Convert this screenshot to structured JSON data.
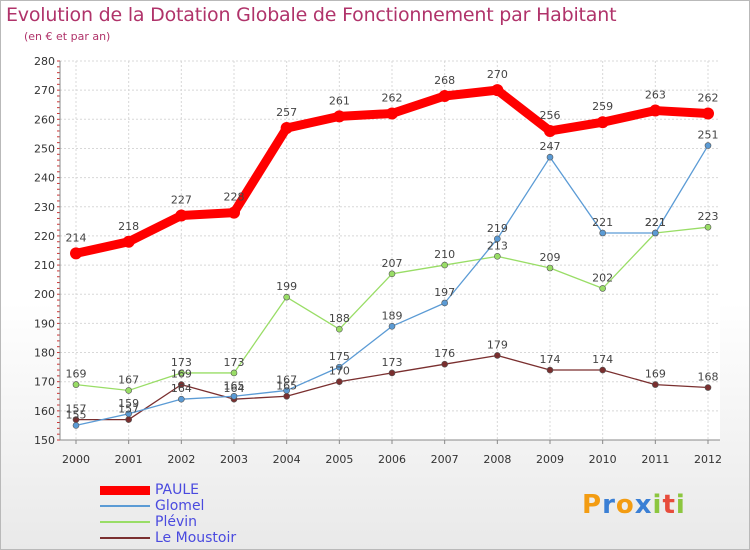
{
  "title": "Evolution de la Dotation Globale de Fonctionnement par Habitant",
  "subtitle": "(en € et par an)",
  "logo": {
    "letters": [
      "P",
      "r",
      "o",
      "x",
      "i",
      "t",
      "i"
    ],
    "colors": [
      "#f39c12",
      "#3a7fd5",
      "#f39c12",
      "#3a7fd5",
      "#8cc63f",
      "#e74c3c",
      "#8cc63f"
    ]
  },
  "chart_data": {
    "type": "line",
    "title": "Evolution de la Dotation Globale de Fonctionnement par Habitant",
    "subtitle": "(en € et par an)",
    "xlabel": "",
    "ylabel": "",
    "x": [
      "2000",
      "2001",
      "2002",
      "2003",
      "2004",
      "2005",
      "2006",
      "2007",
      "2008",
      "2009",
      "2010",
      "2011",
      "2012"
    ],
    "ylim": [
      150,
      280
    ],
    "yticks": [
      "150",
      "160",
      "170",
      "180",
      "190",
      "200",
      "210",
      "220",
      "230",
      "240",
      "250",
      "260",
      "270",
      "280"
    ],
    "grid": true,
    "legend_position": "bottom-left",
    "series": [
      {
        "name": "PAULE",
        "color": "#ff0000",
        "values": [
          214,
          218,
          227,
          228,
          257,
          261,
          262,
          268,
          270,
          256,
          259,
          263,
          262
        ]
      },
      {
        "name": "Glomel",
        "color": "#5b9bd5",
        "values": [
          155,
          159,
          164,
          165,
          167,
          175,
          189,
          197,
          219,
          247,
          221,
          221,
          251
        ]
      },
      {
        "name": "Plévin",
        "color": "#99dd66",
        "values": [
          169,
          167,
          173,
          173,
          199,
          188,
          207,
          210,
          213,
          209,
          202,
          221,
          223
        ]
      },
      {
        "name": "Le Moustoir",
        "color": "#7a2f2f",
        "values": [
          157,
          157,
          169,
          164,
          165,
          170,
          173,
          176,
          179,
          174,
          174,
          169,
          168
        ]
      }
    ]
  }
}
